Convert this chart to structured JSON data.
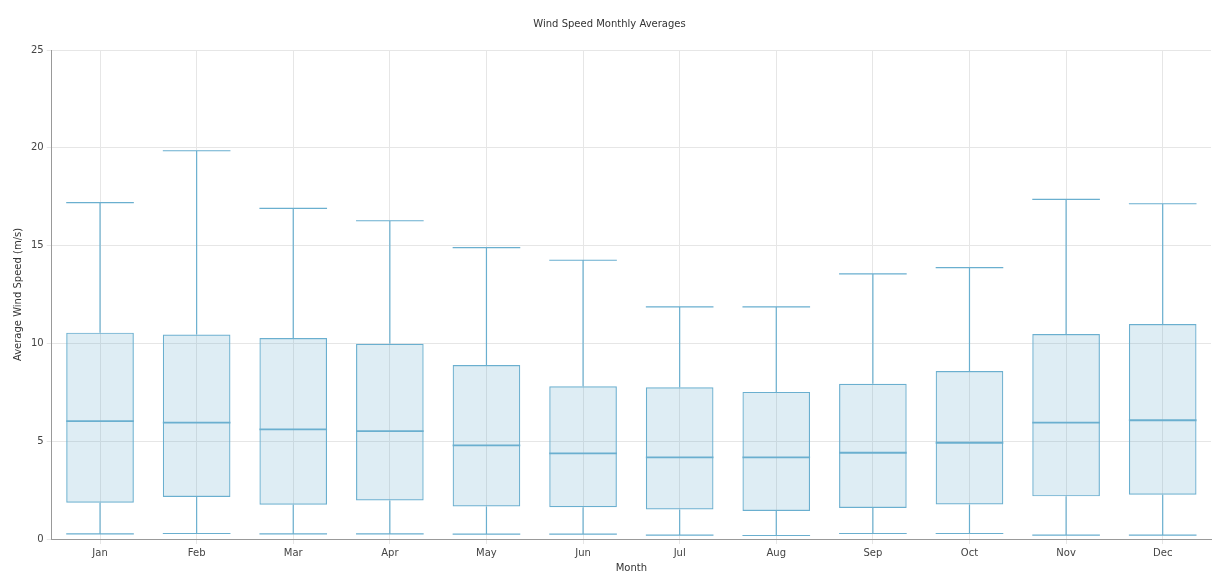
{
  "chart_data": {
    "type": "box",
    "title": "Wind Speed Monthly Averages",
    "xlabel": "Month",
    "ylabel": "Average Wind Speed (m/s)",
    "categories": [
      "Jan",
      "Feb",
      "Mar",
      "Apr",
      "May",
      "Jun",
      "Jul",
      "Aug",
      "Sep",
      "Oct",
      "Nov",
      "Dec"
    ],
    "ylim": [
      0,
      25
    ],
    "yticks": [
      0,
      5,
      10,
      15,
      20,
      25
    ],
    "grid": true,
    "series": [
      {
        "color": "#6aafcf",
        "boxes": [
          {
            "low": 0.26,
            "q1": 1.85,
            "median": 6.03,
            "q3": 10.55,
            "high": 17.2
          },
          {
            "low": 0.28,
            "q1": 2.15,
            "median": 5.95,
            "q3": 10.45,
            "high": 19.85
          },
          {
            "low": 0.26,
            "q1": 1.75,
            "median": 5.6,
            "q3": 10.27,
            "high": 16.9
          },
          {
            "low": 0.26,
            "q1": 1.97,
            "median": 5.52,
            "q3": 9.98,
            "high": 16.27
          },
          {
            "low": 0.25,
            "q1": 1.66,
            "median": 4.79,
            "q3": 8.89,
            "high": 14.9
          },
          {
            "low": 0.25,
            "q1": 1.62,
            "median": 4.38,
            "q3": 7.81,
            "high": 14.25
          },
          {
            "low": 0.2,
            "q1": 1.51,
            "median": 4.17,
            "q3": 7.76,
            "high": 11.87
          },
          {
            "low": 0.18,
            "q1": 1.43,
            "median": 4.17,
            "q3": 7.52,
            "high": 11.87
          },
          {
            "low": 0.28,
            "q1": 1.59,
            "median": 4.41,
            "q3": 7.94,
            "high": 13.55
          },
          {
            "low": 0.28,
            "q1": 1.77,
            "median": 4.92,
            "q3": 8.59,
            "high": 13.87
          },
          {
            "low": 0.2,
            "q1": 2.18,
            "median": 5.95,
            "q3": 10.48,
            "high": 17.36
          },
          {
            "low": 0.2,
            "q1": 2.26,
            "median": 6.07,
            "q3": 10.99,
            "high": 17.14
          }
        ]
      }
    ]
  }
}
